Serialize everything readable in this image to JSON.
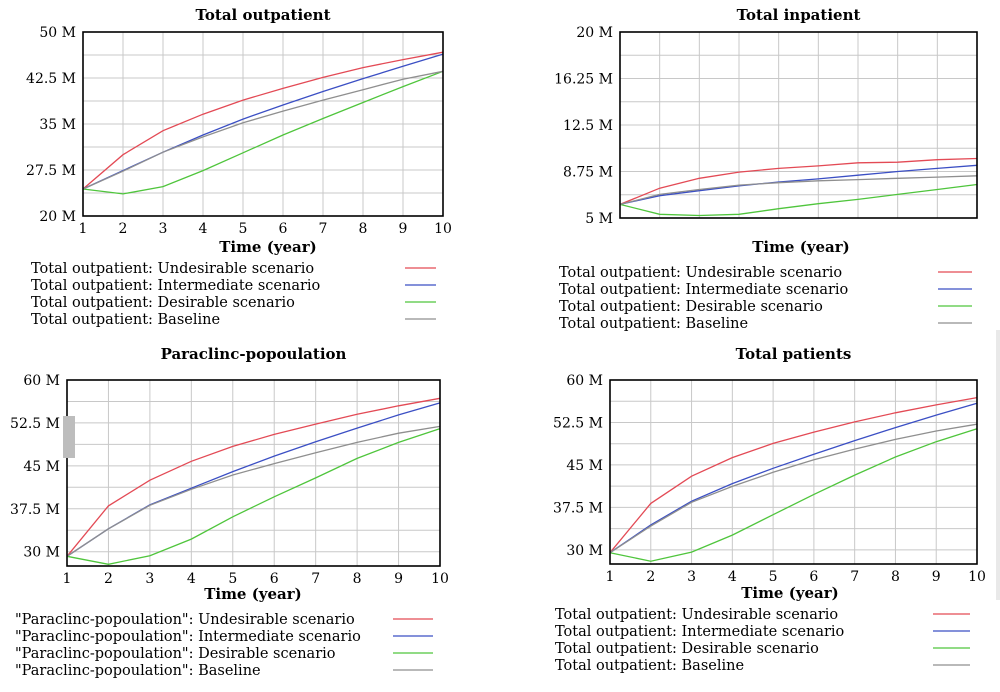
{
  "colors": {
    "undesirable": "#e34a55",
    "intermediate": "#3b4fc4",
    "desirable": "#4fc53c",
    "baseline": "#8f8f8f"
  },
  "chart_data": [
    {
      "type": "line",
      "title": "Total outpatient",
      "xlabel": "Time (year)",
      "x": [
        1,
        2,
        3,
        4,
        5,
        6,
        7,
        8,
        9,
        10
      ],
      "xticks": [
        "1",
        "2",
        "3",
        "4",
        "5",
        "6",
        "7",
        "8",
        "9",
        "10"
      ],
      "ylim": [
        20,
        50
      ],
      "yticks": [
        {
          "v": 20,
          "label": "20 M"
        },
        {
          "v": 27.5,
          "label": "27.5 M"
        },
        {
          "v": 35,
          "label": "35 M"
        },
        {
          "v": 42.5,
          "label": "42.5 M"
        },
        {
          "v": 50,
          "label": "50 M"
        }
      ],
      "series": [
        {
          "name": "Total outpatient: Undesirable scenario",
          "key": "undesirable",
          "values": [
            24.4,
            30.0,
            33.9,
            36.6,
            38.9,
            40.8,
            42.6,
            44.2,
            45.5,
            46.7
          ]
        },
        {
          "name": "Total outpatient: Intermediate scenario",
          "key": "intermediate",
          "values": [
            24.4,
            27.4,
            30.4,
            33.2,
            35.8,
            38.1,
            40.3,
            42.4,
            44.4,
            46.4
          ]
        },
        {
          "name": "Total outpatient: Desirable scenario",
          "key": "desirable",
          "values": [
            24.4,
            23.6,
            24.8,
            27.4,
            30.3,
            33.2,
            35.9,
            38.5,
            41.1,
            43.6
          ]
        },
        {
          "name": "Total outpatient: Baseline",
          "key": "baseline",
          "values": [
            24.4,
            27.3,
            30.4,
            32.9,
            35.2,
            37.1,
            38.9,
            40.6,
            42.3,
            43.6
          ]
        }
      ]
    },
    {
      "type": "line",
      "title": "Total inpatient",
      "xlabel": "Time (year)",
      "x": [
        1,
        2,
        3,
        4,
        5,
        6,
        7,
        8,
        9,
        10
      ],
      "xticks": [],
      "ylim": [
        5,
        20
      ],
      "yticks": [
        {
          "v": 5,
          "label": "5 M"
        },
        {
          "v": 8.75,
          "label": "8.75 M"
        },
        {
          "v": 12.5,
          "label": "12.5 M"
        },
        {
          "v": 16.25,
          "label": "16.25 M"
        },
        {
          "v": 20,
          "label": "20 M"
        }
      ],
      "series": [
        {
          "name": "Total outpatient: Undesirable scenario",
          "key": "undesirable",
          "values": [
            6.1,
            7.4,
            8.2,
            8.7,
            9.0,
            9.2,
            9.45,
            9.5,
            9.7,
            9.8
          ]
        },
        {
          "name": "Total outpatient: Intermediate scenario",
          "key": "intermediate",
          "values": [
            6.1,
            6.8,
            7.2,
            7.6,
            7.9,
            8.15,
            8.45,
            8.75,
            9.0,
            9.25
          ]
        },
        {
          "name": "Total outpatient: Desirable scenario",
          "key": "desirable",
          "values": [
            6.1,
            5.3,
            5.2,
            5.3,
            5.75,
            6.15,
            6.5,
            6.9,
            7.3,
            7.7
          ]
        },
        {
          "name": "Total outpatient: Baseline",
          "key": "baseline",
          "values": [
            6.1,
            6.9,
            7.3,
            7.65,
            7.85,
            8.0,
            8.1,
            8.2,
            8.3,
            8.4
          ]
        }
      ]
    },
    {
      "type": "line",
      "title": "Paraclinc-popoulation",
      "xlabel": "Time (year)",
      "x": [
        1,
        2,
        3,
        4,
        5,
        6,
        7,
        8,
        9,
        10
      ],
      "xticks": [
        "1",
        "2",
        "3",
        "4",
        "5",
        "6",
        "7",
        "8",
        "9",
        "10"
      ],
      "ylim": [
        27.5,
        60
      ],
      "yticks": [
        {
          "v": 30,
          "label": "30 M"
        },
        {
          "v": 37.5,
          "label": "37.5 M"
        },
        {
          "v": 45,
          "label": "45 M"
        },
        {
          "v": 52.5,
          "label": "52.5 M"
        },
        {
          "v": 60,
          "label": "60 M"
        }
      ],
      "series": [
        {
          "name": "\"Paraclinc-popoulation\": Undesirable scenario",
          "key": "undesirable",
          "values": [
            29.2,
            38.0,
            42.5,
            45.8,
            48.4,
            50.5,
            52.3,
            54.0,
            55.5,
            56.8
          ]
        },
        {
          "name": "\"Paraclinc-popoulation\": Intermediate scenario",
          "key": "intermediate",
          "values": [
            29.2,
            34.0,
            38.2,
            41.1,
            44.0,
            46.7,
            49.2,
            51.6,
            53.9,
            56.0
          ]
        },
        {
          "name": "\"Paraclinc-popoulation\": Desirable scenario",
          "key": "desirable",
          "values": [
            29.2,
            27.8,
            29.3,
            32.2,
            36.1,
            39.6,
            42.9,
            46.3,
            49.1,
            51.5
          ]
        },
        {
          "name": "\"Paraclinc-popoulation\": Baseline",
          "key": "baseline",
          "values": [
            29.2,
            34.0,
            38.1,
            40.9,
            43.4,
            45.4,
            47.3,
            49.1,
            50.7,
            51.9
          ]
        }
      ]
    },
    {
      "type": "line",
      "title": "Total patients",
      "xlabel": "Time (year)",
      "x": [
        1,
        2,
        3,
        4,
        5,
        6,
        7,
        8,
        9,
        10
      ],
      "xticks": [
        "1",
        "2",
        "3",
        "4",
        "5",
        "6",
        "7",
        "8",
        "9",
        "10"
      ],
      "ylim": [
        27.5,
        60
      ],
      "yticks": [
        {
          "v": 30,
          "label": "30 M"
        },
        {
          "v": 37.5,
          "label": "37.5 M"
        },
        {
          "v": 45,
          "label": "45 M"
        },
        {
          "v": 52.5,
          "label": "52.5 M"
        },
        {
          "v": 60,
          "label": "60 M"
        }
      ],
      "series": [
        {
          "name": "Total outpatient: Undesirable scenario",
          "key": "undesirable",
          "values": [
            29.5,
            38.2,
            43.0,
            46.3,
            48.8,
            50.8,
            52.6,
            54.2,
            55.6,
            56.9
          ]
        },
        {
          "name": "Total outpatient: Intermediate scenario",
          "key": "intermediate",
          "values": [
            29.5,
            34.4,
            38.6,
            41.7,
            44.4,
            46.9,
            49.3,
            51.6,
            53.8,
            55.9
          ]
        },
        {
          "name": "Total outpatient: Desirable scenario",
          "key": "desirable",
          "values": [
            29.5,
            28.0,
            29.6,
            32.6,
            36.2,
            39.8,
            43.2,
            46.4,
            49.1,
            51.4
          ]
        },
        {
          "name": "Total outpatient: Baseline",
          "key": "baseline",
          "values": [
            29.5,
            34.2,
            38.4,
            41.2,
            43.7,
            45.9,
            47.8,
            49.5,
            51.0,
            52.2
          ]
        }
      ]
    }
  ]
}
